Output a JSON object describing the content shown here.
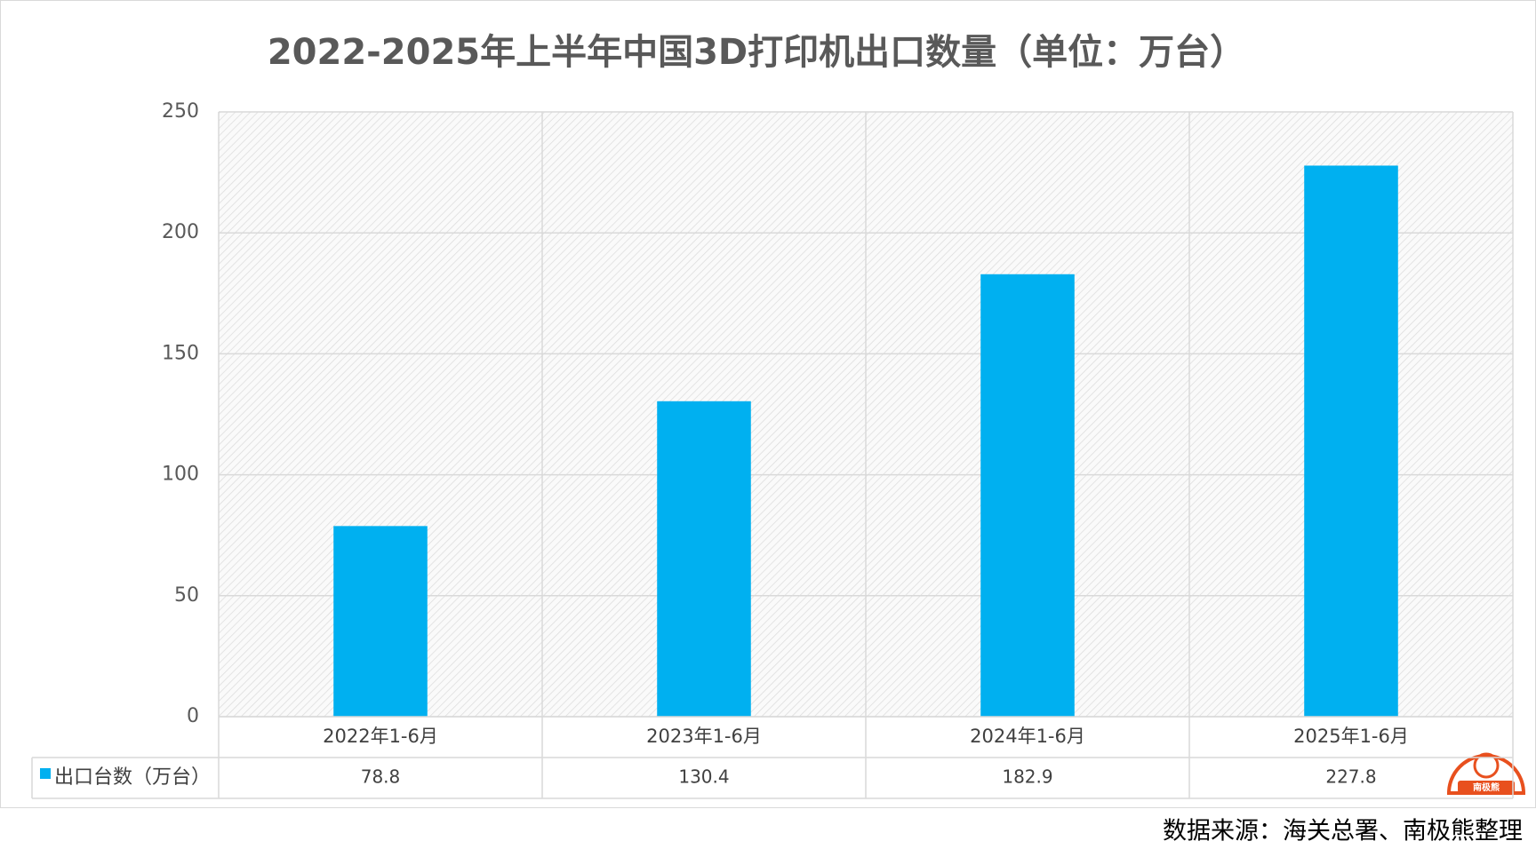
{
  "chart_data": {
    "type": "bar",
    "title": "2022-2025年上半年中国3D打印机出口数量（单位：万台）",
    "categories": [
      "2022年1-6月",
      "2023年1-6月",
      "2024年1-6月",
      "2025年1-6月"
    ],
    "series": [
      {
        "name": "出口台数（万台）",
        "color": "#00b0f0",
        "values": [
          78.8,
          130.4,
          182.9,
          227.8
        ]
      }
    ],
    "ylim": [
      0,
      250
    ],
    "yticks": [
      0,
      50,
      100,
      150,
      200,
      250
    ],
    "grid": true,
    "source": "数据来源：海关总署、南极熊整理",
    "logo": "南极熊"
  }
}
